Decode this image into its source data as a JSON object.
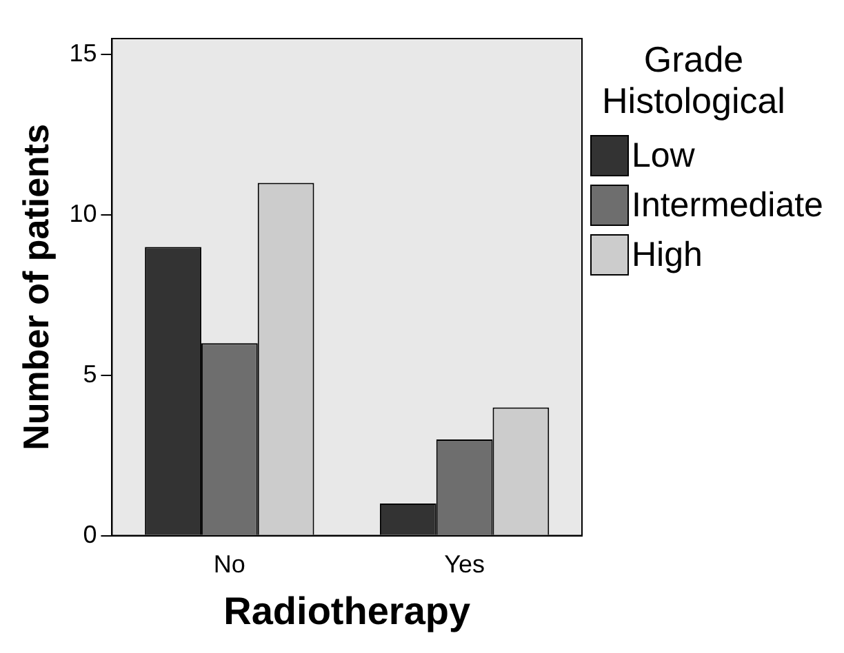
{
  "chart_data": {
    "type": "bar",
    "xlabel": "Radiotherapy",
    "ylabel": "Number of patients",
    "legend_title": "Grade Histological",
    "categories": [
      "No",
      "Yes"
    ],
    "series": [
      {
        "name": "Low",
        "color": "#333333",
        "values": [
          9,
          1
        ]
      },
      {
        "name": "Intermediate",
        "color": "#6e6e6e",
        "values": [
          6,
          3
        ]
      },
      {
        "name": "High",
        "color": "#cccccc",
        "values": [
          11,
          4
        ]
      }
    ],
    "ylim": [
      0,
      15.5
    ],
    "yticks": [
      0,
      5,
      10,
      15
    ],
    "grid": false,
    "legend": "right"
  }
}
